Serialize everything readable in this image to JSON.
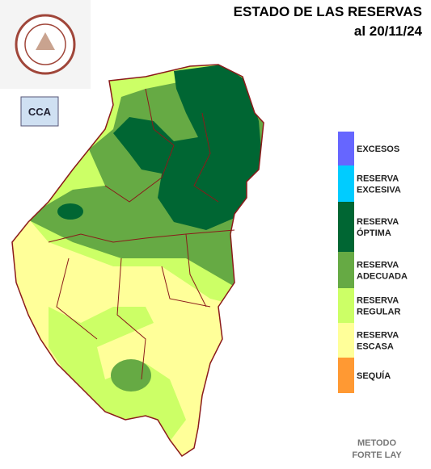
{
  "header": {
    "title": "ESTADO DE LAS RESERVAS",
    "date": "al 20/11/24"
  },
  "logo": {
    "badge": "CCA"
  },
  "legend": [
    {
      "lines": [
        "EXCESOS"
      ],
      "color": "#6666ff"
    },
    {
      "lines": [
        "RESERVA",
        "EXCESIVA"
      ],
      "color": "#00ccff"
    },
    {
      "lines": [
        "RESERVA",
        "ÓPTIMA"
      ],
      "color": "#006633"
    },
    {
      "lines": [
        "RESERVA",
        "ADECUADA"
      ],
      "color": "#66aa44"
    },
    {
      "lines": [
        "RESERVA",
        "REGULAR"
      ],
      "color": "#ccff66"
    },
    {
      "lines": [
        "RESERVA",
        "ESCASA"
      ],
      "color": "#ffff99"
    },
    {
      "lines": [
        "SEQUÍA"
      ],
      "color": "#ff9933"
    }
  ],
  "footer": {
    "lines": [
      "METODO",
      "FORTE LAY"
    ]
  }
}
